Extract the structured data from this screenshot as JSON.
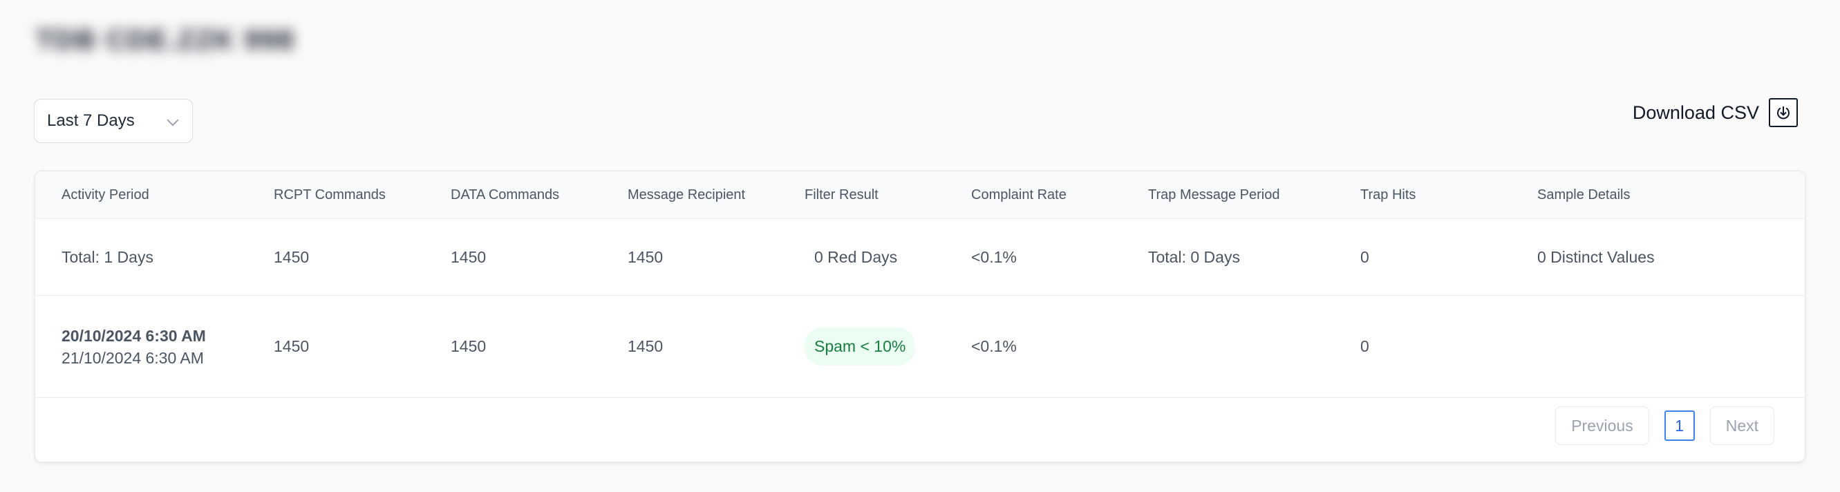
{
  "page": {
    "title": "TDB CDE.ZZK 998"
  },
  "filters": {
    "range_label": "Last 7 Days"
  },
  "actions": {
    "download_label": "Download CSV"
  },
  "table": {
    "headers": [
      "Activity Period",
      "RCPT Commands",
      "DATA Commands",
      "Message Recipient",
      "Filter Result",
      "Complaint Rate",
      "Trap Message Period",
      "Trap Hits",
      "Sample Details"
    ],
    "total_row": {
      "activity_period": "Total: 1 Days",
      "rcpt_commands": "1450",
      "data_commands": "1450",
      "message_recipient": "1450",
      "filter_result": "0 Red Days",
      "complaint_rate": "<0.1%",
      "trap_message_period": "Total: 0 Days",
      "trap_hits": "0",
      "sample_details": "0 Distinct Values"
    },
    "rows": [
      {
        "period_start": "20/10/2024 6:30 AM",
        "period_end": "21/10/2024 6:30 AM",
        "rcpt_commands": "1450",
        "data_commands": "1450",
        "message_recipient": "1450",
        "filter_result": "Spam < 10%",
        "complaint_rate": "<0.1%",
        "trap_hits": "0"
      }
    ]
  },
  "pagination": {
    "previous_label": "Previous",
    "current_page": "1",
    "next_label": "Next"
  },
  "colors": {
    "accent": "#3b82f6",
    "badge_bg": "#ecfdf3",
    "badge_text": "#15803d"
  }
}
